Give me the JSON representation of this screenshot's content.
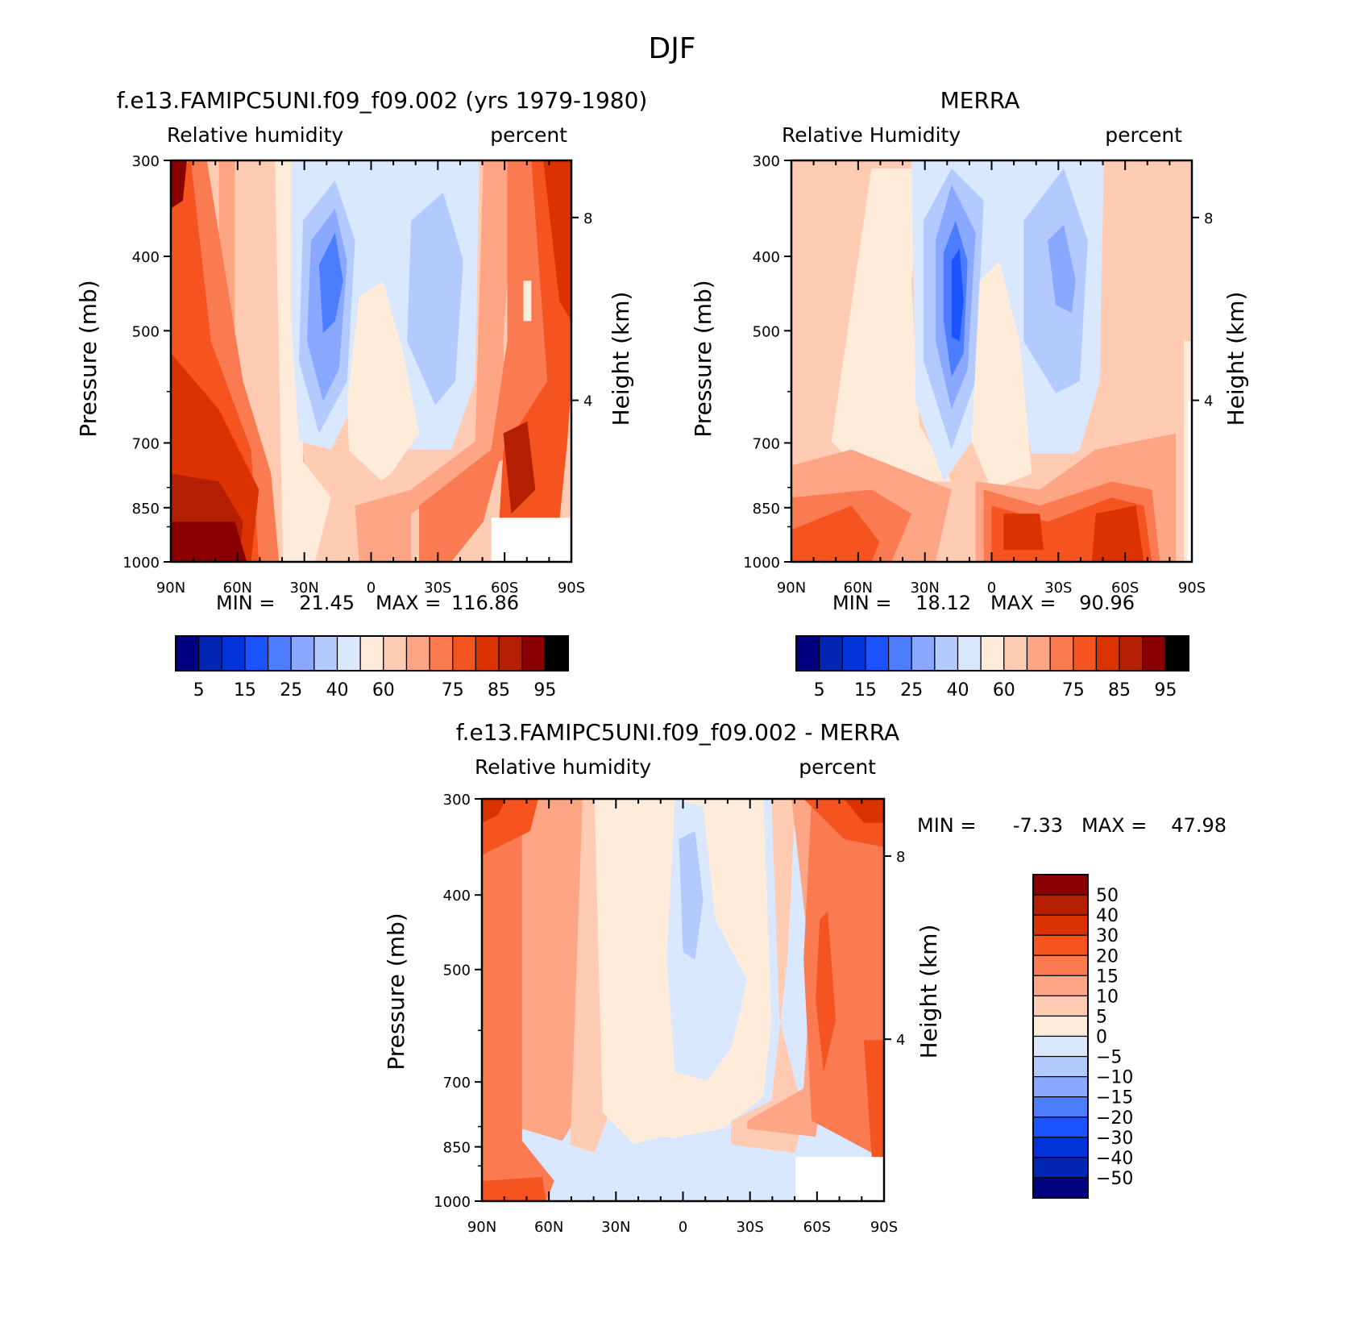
{
  "figure": {
    "title": "DJF"
  },
  "chart_data": [
    {
      "type": "heatmap",
      "panel": "model",
      "title": "f.e13.FAMIPC5UNI.f09_f09.002 (yrs 1979-1980)",
      "variable_label": "Relative humidity",
      "units_label": "percent",
      "ylabel": "Pressure (mb)",
      "y2label": "Height (km)",
      "x_ticks": [
        "90N",
        "60N",
        "30N",
        "0",
        "30S",
        "60S",
        "90S"
      ],
      "x_range": [
        90,
        -90
      ],
      "y_ticks": [
        "300",
        "400",
        "500",
        "700",
        "850",
        "1000"
      ],
      "y_range_mb": [
        300,
        1000
      ],
      "y_scale": "log",
      "y2_ticks": [
        "8",
        "4"
      ],
      "min_label": "MIN =",
      "min": "21.45",
      "max_label": "MAX =",
      "max": "116.86",
      "colorbar": {
        "orientation": "horizontal",
        "levels": [
          5,
          10,
          15,
          20,
          25,
          30,
          40,
          50,
          60,
          65,
          70,
          75,
          80,
          85,
          90,
          95
        ],
        "labels": [
          "5",
          "15",
          "25",
          "40",
          "60",
          "75",
          "85",
          "95"
        ]
      }
    },
    {
      "type": "heatmap",
      "panel": "obs",
      "title": "MERRA",
      "variable_label": "Relative Humidity",
      "units_label": "percent",
      "ylabel": "Pressure (mb)",
      "y2label": "Height (km)",
      "x_ticks": [
        "90N",
        "60N",
        "30N",
        "0",
        "30S",
        "60S",
        "90S"
      ],
      "x_range": [
        90,
        -90
      ],
      "y_ticks": [
        "300",
        "400",
        "500",
        "700",
        "850",
        "1000"
      ],
      "y_range_mb": [
        300,
        1000
      ],
      "y_scale": "log",
      "y2_ticks": [
        "8",
        "4"
      ],
      "min_label": "MIN =",
      "min": "18.12",
      "max_label": "MAX =",
      "max": "90.96",
      "colorbar": {
        "orientation": "horizontal",
        "levels": [
          5,
          10,
          15,
          20,
          25,
          30,
          40,
          50,
          60,
          65,
          70,
          75,
          80,
          85,
          90,
          95
        ],
        "labels": [
          "5",
          "15",
          "25",
          "40",
          "60",
          "75",
          "85",
          "95"
        ]
      }
    },
    {
      "type": "heatmap",
      "panel": "diff",
      "title": "f.e13.FAMIPC5UNI.f09_f09.002 - MERRA",
      "variable_label": "Relative humidity",
      "units_label": "percent",
      "ylabel": "Pressure (mb)",
      "y2label": "Height (km)",
      "x_ticks": [
        "90N",
        "60N",
        "30N",
        "0",
        "30S",
        "60S",
        "90S"
      ],
      "x_range": [
        90,
        -90
      ],
      "y_ticks": [
        "300",
        "400",
        "500",
        "700",
        "850",
        "1000"
      ],
      "y_range_mb": [
        300,
        1000
      ],
      "y_scale": "log",
      "y2_ticks": [
        "8",
        "4"
      ],
      "min_label": "MIN =",
      "min": "-7.33",
      "max_label": "MAX =",
      "max": "47.98",
      "colorbar": {
        "orientation": "vertical",
        "levels": [
          -50,
          -40,
          -30,
          -20,
          -15,
          -10,
          -5,
          0,
          5,
          10,
          15,
          20,
          30,
          40,
          50
        ],
        "labels": [
          "50",
          "40",
          "30",
          "20",
          "15",
          "10",
          "5",
          "0",
          "-5",
          "-10",
          "-15",
          "-20",
          "-30",
          "-40",
          "-50"
        ]
      }
    }
  ],
  "palette": [
    "#000080",
    "#0026b3",
    "#0033d9",
    "#1a53ff",
    "#4d7dff",
    "#8aa8ff",
    "#b3caff",
    "#d9e8ff",
    "#ffebd9",
    "#ffccb3",
    "#fda585",
    "#fa7a52",
    "#f55420",
    "#db3300",
    "#b31f00",
    "#8a0000"
  ]
}
